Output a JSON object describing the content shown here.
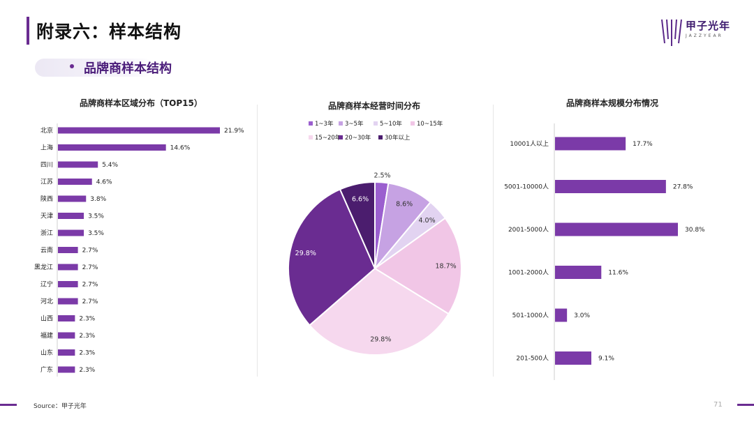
{
  "header": {
    "title": "附录六：样本结构",
    "logo_name": "甲子光年",
    "logo_sub": "JAZZYEAR"
  },
  "section": {
    "title": "品牌商样本结构"
  },
  "colors": {
    "accent": "#6a2c91",
    "bar": "#7b3aa8",
    "pie": [
      "#9b5fcf",
      "#c6a2e3",
      "#e2d3f1",
      "#f1c6e6",
      "#f6d8ee",
      "#6a2c91",
      "#4b1d6e"
    ]
  },
  "chart_data": [
    {
      "type": "bar",
      "orientation": "horizontal",
      "title": "品牌商样本区域分布（TOP15）",
      "categories": [
        "北京",
        "上海",
        "四川",
        "江苏",
        "陕西",
        "天津",
        "浙江",
        "云南",
        "黑龙江",
        "辽宁",
        "河北",
        "山西",
        "福建",
        "山东",
        "广东"
      ],
      "values": [
        21.9,
        14.6,
        5.4,
        4.6,
        3.8,
        3.5,
        3.5,
        2.7,
        2.7,
        2.7,
        2.7,
        2.3,
        2.3,
        2.3,
        2.3
      ],
      "labels": [
        "21.9%",
        "14.6%",
        "5.4%",
        "4.6%",
        "3.8%",
        "3.5%",
        "3.5%",
        "2.7%",
        "2.7%",
        "2.7%",
        "2.7%",
        "2.3%",
        "2.3%",
        "2.3%",
        "2.3%"
      ]
    },
    {
      "type": "pie",
      "title": "品牌商样本经营时间分布",
      "categories": [
        "1~3年",
        "3~5年",
        "5~10年",
        "10~15年",
        "15~20年",
        "20~30年",
        "30年以上"
      ],
      "values": [
        2.5,
        8.6,
        4.0,
        18.7,
        29.8,
        29.8,
        6.6
      ],
      "labels": [
        "2.5%",
        "8.6%",
        "4.0%",
        "18.7%",
        "29.8%",
        "29.8%",
        "6.6%"
      ],
      "legend": "top"
    },
    {
      "type": "bar",
      "orientation": "horizontal",
      "title": "品牌商样本规模分布情况",
      "categories": [
        "10001人以上",
        "5001-10000人",
        "2001-5000人",
        "1001-2000人",
        "501-1000人",
        "201-500人"
      ],
      "values": [
        17.7,
        27.8,
        30.8,
        11.6,
        3.0,
        9.1
      ],
      "labels": [
        "17.7%",
        "27.8%",
        "30.8%",
        "11.6%",
        "3.0%",
        "9.1%"
      ]
    }
  ],
  "footer": {
    "source": "Source：甲子光年",
    "page": "71"
  }
}
